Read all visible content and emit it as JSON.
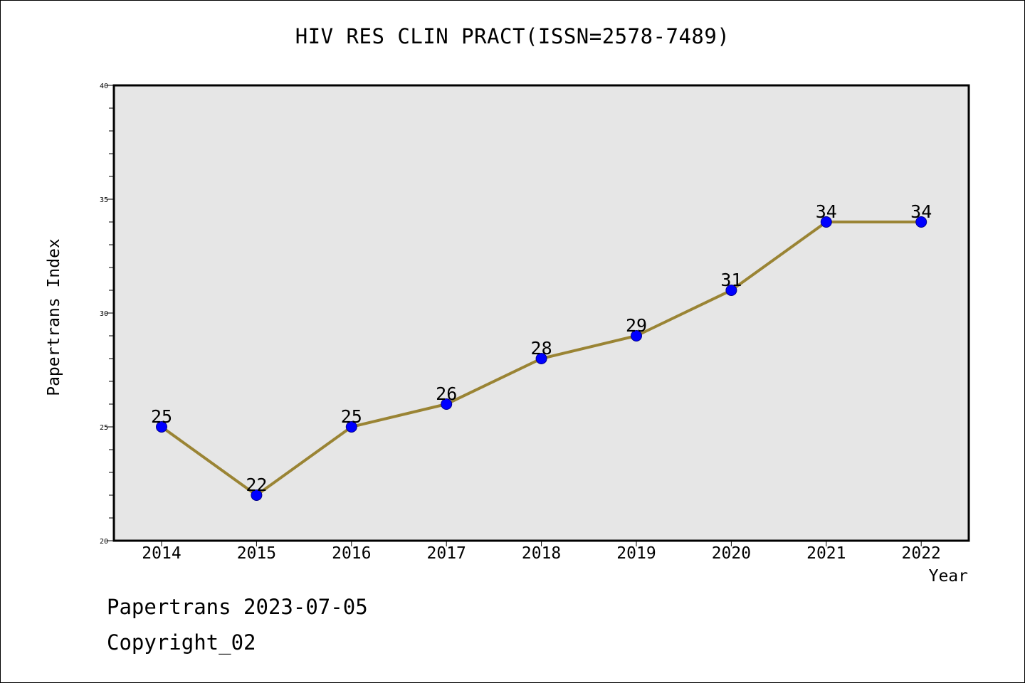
{
  "chart_data": {
    "type": "line",
    "title": "HIV RES CLIN PRACT(ISSN=2578-7489)",
    "xlabel": "Year",
    "ylabel": "Papertrans Index",
    "categories": [
      "2014",
      "2015",
      "2016",
      "2017",
      "2018",
      "2019",
      "2020",
      "2021",
      "2022"
    ],
    "series": [
      {
        "values": [
          25,
          22,
          25,
          26,
          28,
          29,
          31,
          34,
          34
        ]
      }
    ],
    "ylim": [
      20,
      40
    ],
    "yticks": [
      "20",
      "25",
      "30",
      "35",
      "40"
    ],
    "grid": false,
    "colors": {
      "line": "#9a8434",
      "marker": "#0000ff",
      "plot_background": "#e6e6e6"
    }
  },
  "footer": {
    "line1": "Papertrans 2023-07-05",
    "line2": "Copyright_02"
  }
}
